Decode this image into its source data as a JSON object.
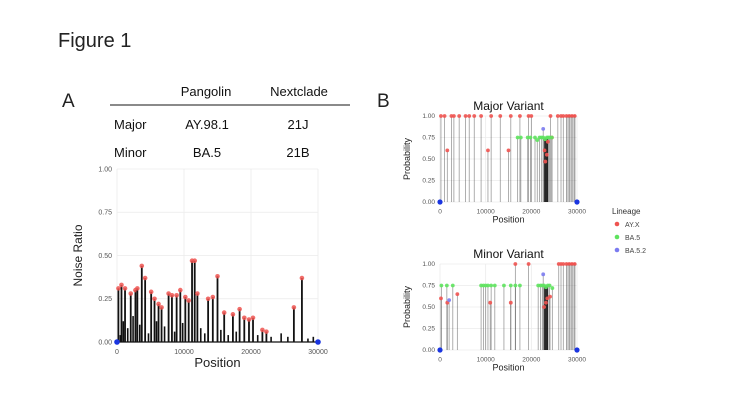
{
  "figure": {
    "title": "Figure 1",
    "panel_a": "A",
    "panel_b": "B"
  },
  "lineage_table": {
    "columns": [
      "Pangolin",
      "Nextclade"
    ],
    "rows": [
      {
        "label": "Major",
        "pangolin": "AY.98.1",
        "nextclade": "21J"
      },
      {
        "label": "Minor",
        "pangolin": "BA.5",
        "nextclade": "21B"
      }
    ]
  },
  "colors": {
    "ayx": "#ef5350",
    "ba5": "#5ee35e",
    "ba52": "#7b7bf0",
    "endpoint": "#1a35e0",
    "bar": "#111111"
  },
  "chart_data": [
    {
      "type": "bar",
      "panel": "A",
      "title": "",
      "xlabel": "Position",
      "ylabel": "Noise Ratio",
      "xlim": [
        0,
        30000
      ],
      "ylim": [
        0,
        1.0
      ],
      "xticks": [
        0,
        10000,
        20000,
        30000
      ],
      "yticks": [
        "0.00",
        "0.25",
        "0.50",
        "0.75",
        "1.00"
      ],
      "grid": true,
      "highlighted": [
        [
          210,
          0.31
        ],
        [
          670,
          0.33
        ],
        [
          1200,
          0.31
        ],
        [
          2050,
          0.28
        ],
        [
          2750,
          0.3
        ],
        [
          3040,
          0.31
        ],
        [
          3700,
          0.44
        ],
        [
          4200,
          0.37
        ],
        [
          5100,
          0.29
        ],
        [
          5600,
          0.25
        ],
        [
          6200,
          0.22
        ],
        [
          6650,
          0.2
        ],
        [
          7700,
          0.28
        ],
        [
          8200,
          0.27
        ],
        [
          8900,
          0.27
        ],
        [
          9450,
          0.3
        ],
        [
          10200,
          0.26
        ],
        [
          10700,
          0.24
        ],
        [
          11200,
          0.47
        ],
        [
          11600,
          0.47
        ],
        [
          12000,
          0.28
        ],
        [
          13600,
          0.25
        ],
        [
          14300,
          0.26
        ],
        [
          15000,
          0.38
        ],
        [
          16000,
          0.17
        ],
        [
          17300,
          0.16
        ],
        [
          18300,
          0.19
        ],
        [
          19000,
          0.14
        ],
        [
          19700,
          0.13
        ],
        [
          20300,
          0.14
        ],
        [
          21700,
          0.07
        ],
        [
          22300,
          0.06
        ],
        [
          26400,
          0.2
        ],
        [
          27600,
          0.37
        ]
      ],
      "baseline": [
        [
          500,
          0.04
        ],
        [
          950,
          0.12
        ],
        [
          1600,
          0.08
        ],
        [
          2400,
          0.15
        ],
        [
          3400,
          0.1
        ],
        [
          4700,
          0.05
        ],
        [
          5900,
          0.12
        ],
        [
          7100,
          0.09
        ],
        [
          8600,
          0.06
        ],
        [
          9800,
          0.11
        ],
        [
          12500,
          0.08
        ],
        [
          13100,
          0.05
        ],
        [
          15500,
          0.07
        ],
        [
          16600,
          0.04
        ],
        [
          17800,
          0.06
        ],
        [
          21000,
          0.04
        ],
        [
          23000,
          0.03
        ],
        [
          24500,
          0.05
        ],
        [
          25500,
          0.03
        ],
        [
          28500,
          0.02
        ],
        [
          29300,
          0.03
        ]
      ],
      "endpoints": [
        [
          0,
          0
        ],
        [
          30000,
          0
        ]
      ]
    },
    {
      "type": "scatter",
      "panel": "B-major",
      "title": "Major Variant",
      "xlabel": "Position",
      "ylabel": "Probability",
      "xlim": [
        0,
        30000
      ],
      "ylim": [
        0,
        1.0
      ],
      "xticks": [
        0,
        10000,
        20000,
        30000
      ],
      "yticks": [
        "0.00",
        "0.25",
        "0.50",
        "0.75",
        "1.00"
      ],
      "grid": true,
      "series": [
        {
          "name": "AY.X",
          "points": [
            [
              210,
              1.0
            ],
            [
              1000,
              1.0
            ],
            [
              1600,
              0.6
            ],
            [
              2500,
              1.0
            ],
            [
              3040,
              1.0
            ],
            [
              4200,
              1.0
            ],
            [
              5600,
              1.0
            ],
            [
              6400,
              1.0
            ],
            [
              7500,
              1.0
            ],
            [
              9000,
              1.0
            ],
            [
              10500,
              0.6
            ],
            [
              11200,
              1.0
            ],
            [
              13200,
              1.0
            ],
            [
              15000,
              0.6
            ],
            [
              15500,
              1.0
            ],
            [
              17500,
              1.0
            ],
            [
              19400,
              1.0
            ],
            [
              20000,
              1.0
            ],
            [
              22900,
              0.6
            ],
            [
              23060,
              0.47
            ],
            [
              23400,
              0.55
            ],
            [
              23600,
              0.7
            ],
            [
              24200,
              1.0
            ],
            [
              24500,
              0.75
            ],
            [
              25800,
              1.0
            ],
            [
              26500,
              1.0
            ],
            [
              27000,
              1.0
            ],
            [
              27700,
              1.0
            ],
            [
              28300,
              1.0
            ],
            [
              28900,
              1.0
            ],
            [
              29500,
              1.0
            ]
          ]
        },
        {
          "name": "BA.5",
          "points": [
            [
              17000,
              0.75
            ],
            [
              17700,
              0.75
            ],
            [
              19200,
              0.75
            ],
            [
              19800,
              0.75
            ],
            [
              20800,
              0.75
            ],
            [
              21300,
              0.72
            ],
            [
              21800,
              0.75
            ],
            [
              22200,
              0.75
            ],
            [
              22600,
              0.75
            ],
            [
              23000,
              0.73
            ],
            [
              23400,
              0.75
            ],
            [
              23700,
              0.75
            ],
            [
              24000,
              0.75
            ],
            [
              24500,
              0.75
            ]
          ]
        },
        {
          "name": "BA.5.2",
          "points": [
            [
              22600,
              0.85
            ]
          ]
        }
      ],
      "endpoints": [
        [
          0,
          0
        ],
        [
          30000,
          0
        ]
      ]
    },
    {
      "type": "scatter",
      "panel": "B-minor",
      "title": "Minor Variant",
      "xlabel": "Position",
      "ylabel": "Probability",
      "xlim": [
        0,
        30000
      ],
      "ylim": [
        0,
        1.0
      ],
      "xticks": [
        0,
        10000,
        20000,
        30000
      ],
      "yticks": [
        "0.00",
        "0.25",
        "0.50",
        "0.75",
        "1.00"
      ],
      "grid": true,
      "series": [
        {
          "name": "AY.X",
          "points": [
            [
              210,
              0.6
            ],
            [
              1600,
              0.55
            ],
            [
              3800,
              0.65
            ],
            [
              11000,
              0.55
            ],
            [
              15500,
              0.55
            ],
            [
              16500,
              1.0
            ],
            [
              19400,
              1.0
            ],
            [
              22800,
              0.5
            ],
            [
              23200,
              0.55
            ],
            [
              23500,
              0.6
            ],
            [
              24100,
              0.62
            ],
            [
              26000,
              1.0
            ],
            [
              26500,
              1.0
            ],
            [
              27000,
              1.0
            ],
            [
              27700,
              1.0
            ],
            [
              28300,
              1.0
            ],
            [
              28900,
              1.0
            ],
            [
              29500,
              1.0
            ]
          ]
        },
        {
          "name": "BA.5",
          "points": [
            [
              300,
              0.75
            ],
            [
              1500,
              0.75
            ],
            [
              2800,
              0.75
            ],
            [
              9000,
              0.75
            ],
            [
              9500,
              0.75
            ],
            [
              10000,
              0.75
            ],
            [
              10500,
              0.75
            ],
            [
              11200,
              0.75
            ],
            [
              12000,
              0.75
            ],
            [
              14000,
              0.75
            ],
            [
              15500,
              0.75
            ],
            [
              16500,
              0.75
            ],
            [
              17500,
              0.75
            ],
            [
              21500,
              0.75
            ],
            [
              22000,
              0.75
            ],
            [
              22400,
              0.75
            ],
            [
              22800,
              0.75
            ],
            [
              23200,
              0.73
            ],
            [
              23600,
              0.75
            ],
            [
              24000,
              0.75
            ],
            [
              24600,
              0.72
            ]
          ]
        },
        {
          "name": "BA.5.2",
          "points": [
            [
              2000,
              0.58
            ],
            [
              22600,
              0.88
            ]
          ]
        }
      ],
      "endpoints": [
        [
          0,
          0
        ],
        [
          30000,
          0
        ]
      ]
    }
  ],
  "legend": {
    "title": "Lineage",
    "entries": [
      "AY.X",
      "BA.5",
      "BA.5.2"
    ]
  }
}
